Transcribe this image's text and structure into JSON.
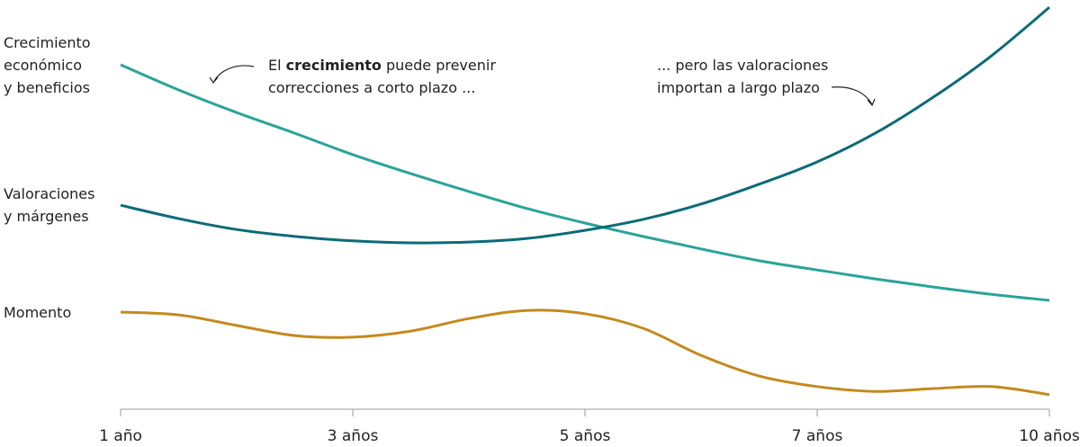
{
  "chart_data": {
    "type": "line",
    "xticks": [
      {
        "value": 0,
        "label": "1 año"
      },
      {
        "value": 1,
        "label": "3 años"
      },
      {
        "value": 2,
        "label": "5 años"
      },
      {
        "value": 3,
        "label": "7 años"
      },
      {
        "value": 4,
        "label": "10 años"
      }
    ],
    "xlim": [
      0,
      4
    ],
    "ylim": [
      0,
      100
    ],
    "x": [
      0,
      0.25,
      0.5,
      0.75,
      1,
      1.25,
      1.5,
      1.75,
      2,
      2.25,
      2.5,
      2.75,
      3,
      3.25,
      3.5,
      3.75,
      4
    ],
    "series": [
      {
        "name": "Crecimiento\neconómico\ny beneficios",
        "color": "#2aa39a",
        "values": [
          85.1,
          78.9,
          73.3,
          68.2,
          62.9,
          58.2,
          53.8,
          49.6,
          46.0,
          42.7,
          39.6,
          36.7,
          34.4,
          32.2,
          30.2,
          28.4,
          26.9
        ]
      },
      {
        "name": "Valoraciones\ny márgenes",
        "color": "#0b6b78",
        "values": [
          50.4,
          47.1,
          44.4,
          42.7,
          41.6,
          41.1,
          41.3,
          42.2,
          44.2,
          46.9,
          50.7,
          55.6,
          61.1,
          68.2,
          77.1,
          87.3,
          99.3
        ]
      },
      {
        "name": "Momento",
        "color": "#c48a1e",
        "values": [
          24.0,
          23.3,
          20.7,
          18.2,
          17.8,
          19.3,
          22.4,
          24.4,
          23.6,
          20.0,
          13.3,
          8.2,
          5.6,
          4.4,
          5.1,
          5.6,
          3.6
        ]
      }
    ],
    "annotations": [
      {
        "runs": [
          {
            "text": "El "
          },
          {
            "text": "crecimiento",
            "bold": true
          },
          {
            "text": " puede prevenir\ncorrecciones a corto plazo ..."
          }
        ]
      },
      {
        "runs": [
          {
            "text": "... pero las valoraciones\nimportan a largo plazo"
          }
        ]
      }
    ]
  }
}
